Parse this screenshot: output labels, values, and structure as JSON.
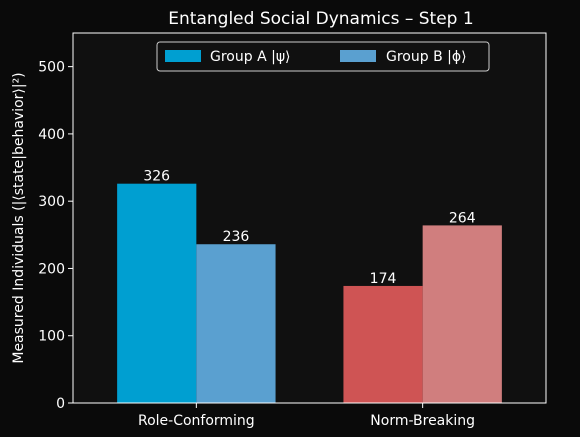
{
  "chart_data": {
    "type": "bar",
    "title": "Entangled Social Dynamics – Step 1",
    "xlabel": "",
    "ylabel": "Measured Individuals (|⟨state|behavior⟩|²)",
    "categories": [
      "Role-Conforming",
      "Norm-Breaking"
    ],
    "series": [
      {
        "name": "Group A |ψ⟩",
        "values": [
          326,
          174
        ],
        "colors": [
          "#009fd1",
          "#cf5454"
        ],
        "legend_color": "#009fd1"
      },
      {
        "name": "Group B |ϕ⟩",
        "values": [
          236,
          264
        ],
        "colors": [
          "#5aa0d0",
          "#d07e7e"
        ],
        "legend_color": "#5aa0d0"
      }
    ],
    "ylim": [
      0,
      550
    ],
    "yticks": [
      0,
      100,
      200,
      300,
      400,
      500
    ],
    "grid": false,
    "legend": "top-center",
    "background": "#101010",
    "page_background": "#0a0a0a"
  }
}
